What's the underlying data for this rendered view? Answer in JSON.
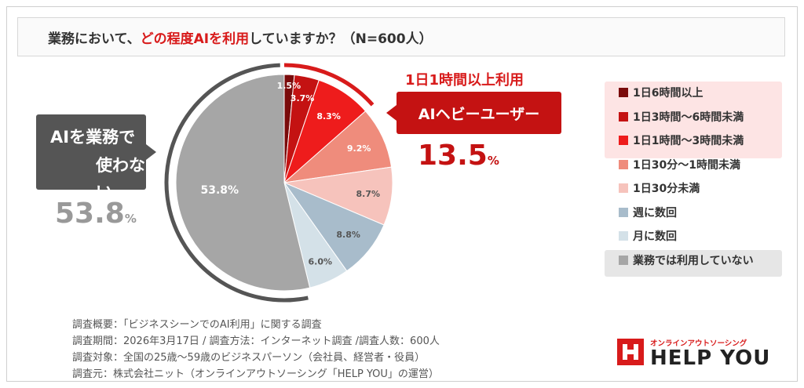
{
  "title": {
    "pre": "業務において、",
    "emphasis": "どの程度AIを利用",
    "post": "していますか？（N=600人）"
  },
  "chart_data": {
    "type": "pie",
    "slices": [
      {
        "label": "1日6時間以上",
        "value": 1.5,
        "display": "1.5%",
        "color": "#7a0b0b",
        "text_color": "#ffffff"
      },
      {
        "label": "1日3時間〜6時間未満",
        "value": 3.7,
        "display": "3.7%",
        "color": "#c41212",
        "text_color": "#ffffff"
      },
      {
        "label": "1日1時間〜3時間未満",
        "value": 8.3,
        "display": "8.3%",
        "color": "#ee1c1c",
        "text_color": "#ffffff"
      },
      {
        "label": "1日30分〜1時間未満",
        "value": 9.2,
        "display": "9.2%",
        "color": "#ef8c7c",
        "text_color": "#ffffff"
      },
      {
        "label": "1日30分未満",
        "value": 8.7,
        "display": "8.7%",
        "color": "#f6c3bc",
        "text_color": "#555555"
      },
      {
        "label": "週に数回",
        "value": 8.8,
        "display": "8.8%",
        "color": "#a8bccb",
        "text_color": "#555555"
      },
      {
        "label": "月に数回",
        "value": 6.0,
        "display": "6.0%",
        "color": "#d4e1e8",
        "text_color": "#555555"
      },
      {
        "label": "業務では利用していない",
        "value": 53.8,
        "display": "53.8%",
        "color": "#a6a6a6",
        "text_color": "#ffffff"
      }
    ]
  },
  "callouts": {
    "left_line1": "AIを業務で",
    "left_line2": "使わない",
    "left_value": "53.8",
    "left_unit": "%",
    "right_heading": "1日1時間以上利用",
    "right_label": "AIヘビーユーザー",
    "right_value": "13.5",
    "right_unit": "%"
  },
  "notes": [
    "調査概要：「ビジネスシーンでのAI利用」に関する調査",
    "調査期間：2026年3月17日 / 調査方法：インターネット調査 /調査人数：600人",
    "調査対象：全国の25歳〜59歳のビジネスパーソン（会社員、経営者・役員）",
    "調査元：株式会社ニット（オンラインアウトソーシング「HELP YOU」の運営）"
  ],
  "logo": {
    "subtitle": "オンラインアウトソーシング",
    "name": "HELP YOU",
    "color": "#d81b1b"
  },
  "colors": {
    "accent_red": "#d81b1b",
    "heavy_user_red": "#c41212",
    "nonuser_gray": "#a6a6a6"
  }
}
